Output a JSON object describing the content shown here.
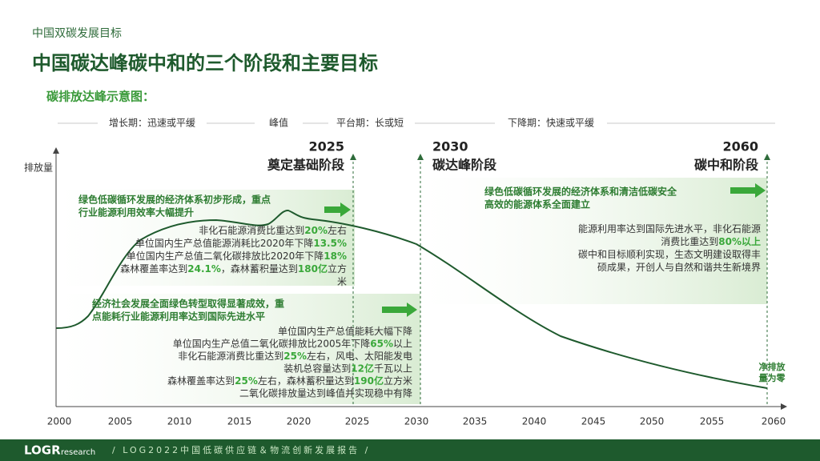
{
  "header": {
    "section": "中国双碳发展目标",
    "title": "中国碳达峰碳中和的三个阶段和主要目标",
    "subtitle": "碳排放达峰示意图："
  },
  "phases": [
    "增长期：迅速或平缓",
    "峰值",
    "平台期：长或短",
    "下降期：快速或平缓"
  ],
  "milestones": [
    {
      "year": "2025",
      "stage": "奠定基础阶段"
    },
    {
      "year": "2030",
      "stage": "碳达峰阶段"
    },
    {
      "year": "2060",
      "stage": "碳中和阶段"
    }
  ],
  "y_label": "排放量",
  "x_ticks": [
    "2000",
    "2005",
    "2010",
    "2015",
    "2020",
    "2025",
    "2030",
    "2035",
    "2040",
    "2045",
    "2050",
    "2055",
    "2060"
  ],
  "boxes": [
    {
      "heading": [
        "绿色低碳循环发展的经济体系初步形成，重点",
        "行业能源利用效率大幅提升"
      ],
      "lines": [
        [
          "非化石能源消费比重达到",
          "20%",
          "左右"
        ],
        [
          "单位国内生产总值能源消耗比2020年下降",
          "13.5%"
        ],
        [
          "单位国内生产总值二氧化碳排放比2020年下降",
          "18%"
        ],
        [
          "森林覆盖率达到",
          "24.1%",
          "，森林蓄积量达到",
          "180亿",
          "立方"
        ],
        [
          "米"
        ]
      ]
    },
    {
      "heading": [
        "经济社会发展全面绿色转型取得显著成效，重",
        "点能耗行业能源利用率达到国际先进水平"
      ],
      "lines": [
        [
          "单位国内生产总值能耗大幅下降"
        ],
        [
          "单位国内生产总值二氧化碳排放比2005年下降",
          "65%",
          "以上"
        ],
        [
          "非化石能源消费比重达到",
          "25%",
          "左右，风电、太阳能发电"
        ],
        [
          "装机总容量达到",
          "12亿",
          "千瓦以上"
        ],
        [
          "森林覆盖率达到",
          "25%",
          "左右，森林蓄积量达到",
          "190亿",
          "立方米"
        ],
        [
          "二氧化碳排放量达到峰值并实现稳中有降"
        ]
      ]
    },
    {
      "heading": [
        "绿色低碳循环发展的经济体系和清洁低碳安全",
        "高效的能源体系全面建立"
      ],
      "lines": [
        [
          "能源利用率达到国际先进水平，非化石能源"
        ],
        [
          "消费比重达到",
          "80%以上"
        ],
        [
          "碳中和目标顺利实现，生态文明建设取得丰"
        ],
        [
          "硕成果，开创人与自然和谐共生新境界"
        ]
      ]
    }
  ],
  "end_note": [
    "净排放",
    "量为零"
  ],
  "footer": {
    "logo": "LOGR",
    "logo_sub": "research",
    "report": "/   LOG2022中国低碳供应链＆物流创新发展报告   /"
  }
}
